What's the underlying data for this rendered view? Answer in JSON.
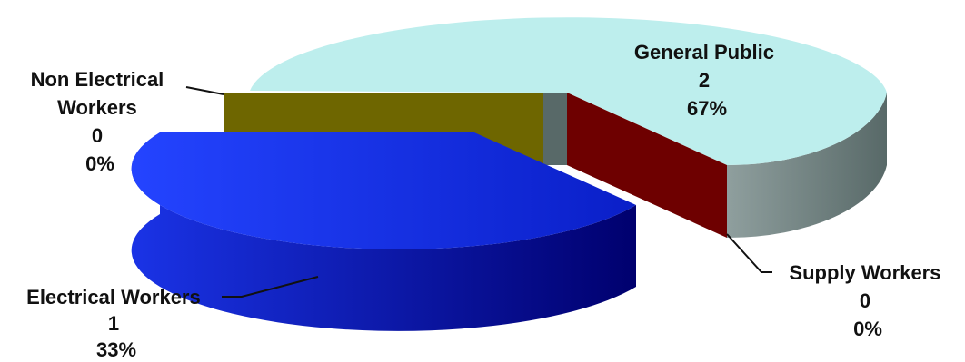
{
  "chart_data": {
    "type": "pie",
    "style": "3d-exploded",
    "slices": [
      {
        "name": "General Public",
        "value": 2,
        "percent": "67%",
        "color": "#bdeeed"
      },
      {
        "name": "Supply Workers",
        "value": 0,
        "percent": "0%",
        "color": "#6e0000"
      },
      {
        "name": "Electrical Workers",
        "value": 1,
        "percent": "33%",
        "color": "#1f3fe6"
      },
      {
        "name": "Non Electrical Workers",
        "value": 0,
        "percent": "0%",
        "color": "#6e6600"
      }
    ]
  },
  "labels": {
    "general_public": {
      "line1": "General Public",
      "line2": "2",
      "line3": "67%"
    },
    "supply_workers": {
      "line1": "Supply Workers",
      "line2": "0",
      "line3": "0%"
    },
    "electrical_workers": {
      "line1": "Electrical Workers",
      "line2": "1",
      "line3": "33%"
    },
    "non_electrical_workers": {
      "line1": "Non Electrical",
      "line2": "Workers",
      "line3": "0",
      "line4": "0%"
    }
  }
}
